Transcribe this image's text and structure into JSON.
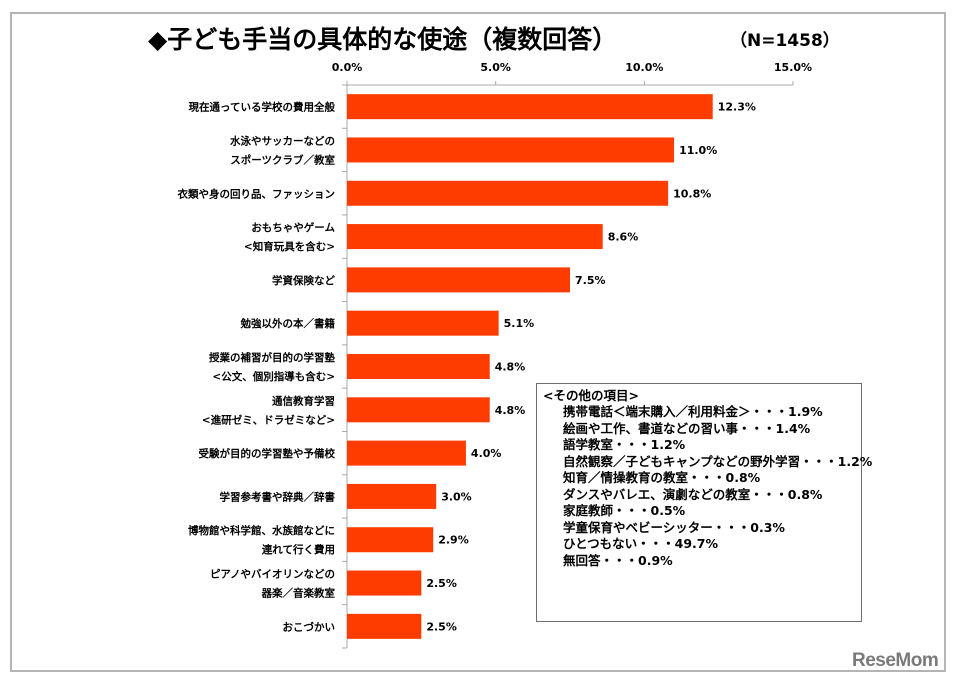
{
  "header": {
    "title": "◆子ども手当の具体的な使途（複数回答）",
    "sample_size": "（N=1458）"
  },
  "chart_data": {
    "type": "bar",
    "orientation": "horizontal",
    "title": "◆子ども手当の具体的な使途（複数回答）",
    "subtitle": "（N=1458）",
    "xlabel": "",
    "ylabel": "",
    "xlim": [
      0,
      15
    ],
    "x_ticks": [
      0,
      5,
      10,
      15
    ],
    "x_tick_labels": [
      "0.0%",
      "5.0%",
      "10.0%",
      "15.0%"
    ],
    "x_tick_position": "top",
    "grid": false,
    "bar_color": "#ff3c00",
    "categories": [
      [
        "現在通っている学校の費用全般"
      ],
      [
        "水泳やサッカーなどの",
        "スポーツクラブ／教室"
      ],
      [
        "衣類や身の回り品、ファッション"
      ],
      [
        "おもちゃやゲーム",
        "<知育玩具を含む>"
      ],
      [
        "学資保険など"
      ],
      [
        "勉強以外の本／書籍"
      ],
      [
        "授業の補習が目的の学習塾",
        "<公文、個別指導も含む>"
      ],
      [
        "通信教育学習",
        "<進研ゼミ、ドラゼミなど>"
      ],
      [
        "受験が目的の学習塾や予備校"
      ],
      [
        "学習参考書や辞典／辞書"
      ],
      [
        "博物館や科学館、水族館などに",
        "連れて行く費用"
      ],
      [
        "ピアノやバイオリンなどの",
        "器楽／音楽教室"
      ],
      [
        "おこづかい"
      ]
    ],
    "values": [
      12.3,
      11.0,
      10.8,
      8.6,
      7.5,
      5.1,
      4.8,
      4.8,
      4.0,
      3.0,
      2.9,
      2.5,
      2.5
    ],
    "value_labels": [
      "12.3%",
      "11.0%",
      "10.8%",
      "8.6%",
      "7.5%",
      "5.1%",
      "4.8%",
      "4.8%",
      "4.0%",
      "3.0%",
      "2.9%",
      "2.5%",
      "2.5%"
    ],
    "annotation": {
      "title": "<その他の項目>",
      "items": [
        "携帯電話＜端末購入／利用料金＞・・・1.9%",
        "絵画や工作、書道などの習い事・・・1.4%",
        "語学教室・・・1.2%",
        "自然観察／子どもキャンプなどの野外学習・・・1.2%",
        "知育／情操教育の教室・・・0.8%",
        "ダンスやバレエ、演劇などの教室・・・0.8%",
        "家庭教師・・・0.5%",
        "学童保育やベビーシッター・・・0.3%",
        "ひとつもない・・・49.7%",
        "無回答・・・0.9%"
      ]
    }
  },
  "watermark": "ReseMom"
}
